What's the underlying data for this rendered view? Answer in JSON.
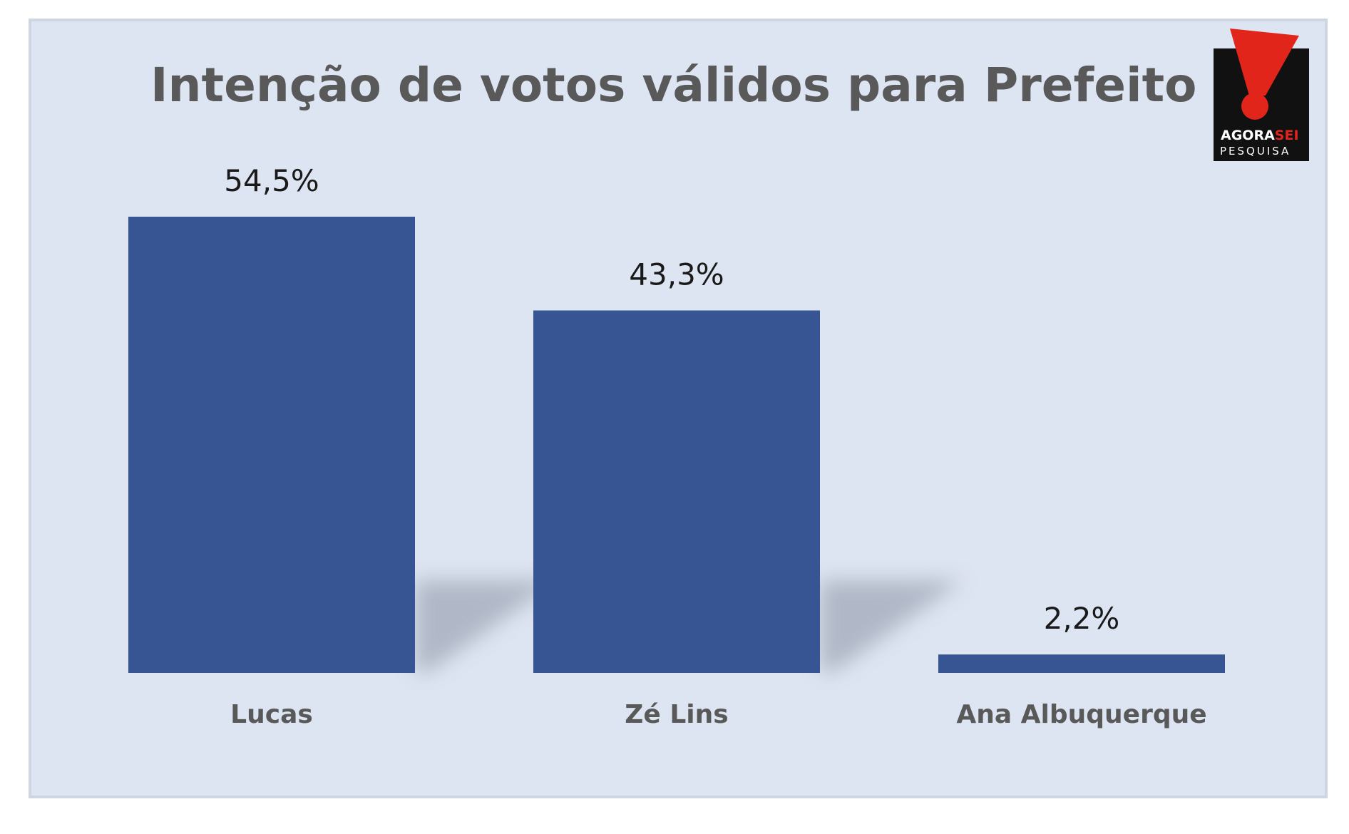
{
  "colors": {
    "background": "#dde4f2",
    "bar": "#385593",
    "shadow": "#a9b0bf",
    "title": "#595959",
    "logo_bg": "#111111",
    "logo_accent": "#e1251b"
  },
  "logo": {
    "brand_left": "AGORA",
    "brand_right": "SEI",
    "subtitle": "PESQUISA"
  },
  "chart_data": {
    "type": "bar",
    "title": "Intenção de votos válidos para Prefeito",
    "xlabel": "",
    "ylabel": "",
    "categories": [
      "Lucas",
      "Zé Lins",
      "Ana Albuquerque"
    ],
    "values": [
      54.5,
      43.3,
      2.2
    ],
    "value_labels": [
      "54,5%",
      "43,3%",
      "2,2%"
    ],
    "unit": "%",
    "grid": false,
    "legend": "none"
  }
}
